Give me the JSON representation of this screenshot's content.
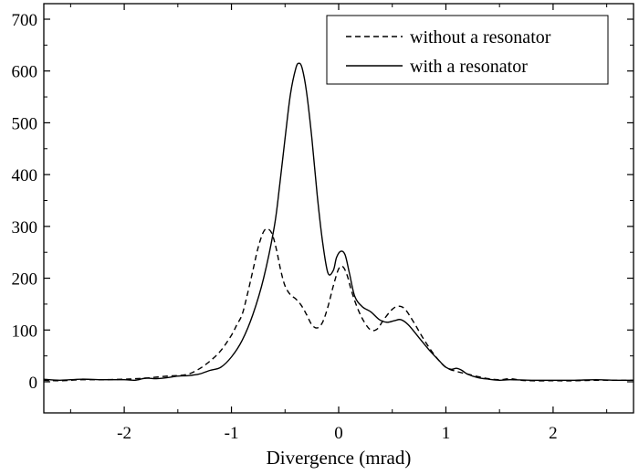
{
  "chart_data": {
    "type": "line",
    "title": "",
    "xlabel": "Divergence (mrad)",
    "ylabel": "",
    "xlim": [
      -2.75,
      2.75
    ],
    "ylim": [
      -60,
      730
    ],
    "x_ticks": [
      -2,
      -1,
      0,
      1,
      2
    ],
    "x_tick_labels": [
      "-2",
      "-1",
      "0",
      "1",
      "2"
    ],
    "y_ticks": [
      0,
      100,
      200,
      300,
      400,
      500,
      600,
      700
    ],
    "y_tick_labels": [
      "0",
      "100",
      "200",
      "300",
      "400",
      "500",
      "600",
      "700"
    ],
    "grid": false,
    "legend_position": "top-right",
    "series": [
      {
        "name": "without a resonator",
        "style": "dashed",
        "color": "#000000",
        "points": [
          [
            -2.75,
            3
          ],
          [
            -2.6,
            2
          ],
          [
            -2.4,
            4
          ],
          [
            -2.2,
            4
          ],
          [
            -2.0,
            5
          ],
          [
            -1.9,
            6
          ],
          [
            -1.8,
            7
          ],
          [
            -1.7,
            9
          ],
          [
            -1.6,
            11
          ],
          [
            -1.5,
            12
          ],
          [
            -1.4,
            15
          ],
          [
            -1.3,
            25
          ],
          [
            -1.2,
            40
          ],
          [
            -1.1,
            60
          ],
          [
            -1.0,
            90
          ],
          [
            -0.95,
            110
          ],
          [
            -0.9,
            130
          ],
          [
            -0.85,
            170
          ],
          [
            -0.8,
            215
          ],
          [
            -0.75,
            260
          ],
          [
            -0.7,
            290
          ],
          [
            -0.66,
            295
          ],
          [
            -0.62,
            285
          ],
          [
            -0.58,
            255
          ],
          [
            -0.54,
            215
          ],
          [
            -0.5,
            185
          ],
          [
            -0.45,
            168
          ],
          [
            -0.4,
            160
          ],
          [
            -0.35,
            148
          ],
          [
            -0.3,
            130
          ],
          [
            -0.25,
            110
          ],
          [
            -0.2,
            104
          ],
          [
            -0.15,
            115
          ],
          [
            -0.1,
            145
          ],
          [
            -0.05,
            185
          ],
          [
            0.0,
            218
          ],
          [
            0.04,
            222
          ],
          [
            0.08,
            205
          ],
          [
            0.12,
            175
          ],
          [
            0.18,
            140
          ],
          [
            0.24,
            115
          ],
          [
            0.3,
            100
          ],
          [
            0.36,
            102
          ],
          [
            0.42,
            120
          ],
          [
            0.5,
            140
          ],
          [
            0.56,
            146
          ],
          [
            0.62,
            140
          ],
          [
            0.7,
            115
          ],
          [
            0.8,
            80
          ],
          [
            0.9,
            50
          ],
          [
            1.0,
            28
          ],
          [
            1.1,
            20
          ],
          [
            1.2,
            15
          ],
          [
            1.3,
            10
          ],
          [
            1.4,
            6
          ],
          [
            1.5,
            4
          ],
          [
            1.6,
            6
          ],
          [
            1.7,
            3
          ],
          [
            1.8,
            2
          ],
          [
            2.0,
            2
          ],
          [
            2.2,
            2
          ],
          [
            2.4,
            3
          ],
          [
            2.6,
            3
          ],
          [
            2.75,
            3
          ]
        ]
      },
      {
        "name": "with a resonator",
        "style": "solid",
        "color": "#000000",
        "points": [
          [
            -2.75,
            5
          ],
          [
            -2.6,
            3
          ],
          [
            -2.4,
            5
          ],
          [
            -2.2,
            4
          ],
          [
            -2.0,
            4
          ],
          [
            -1.9,
            3
          ],
          [
            -1.8,
            7
          ],
          [
            -1.7,
            6
          ],
          [
            -1.6,
            8
          ],
          [
            -1.5,
            11
          ],
          [
            -1.4,
            12
          ],
          [
            -1.3,
            15
          ],
          [
            -1.2,
            22
          ],
          [
            -1.1,
            28
          ],
          [
            -1.0,
            48
          ],
          [
            -0.9,
            80
          ],
          [
            -0.8,
            130
          ],
          [
            -0.7,
            200
          ],
          [
            -0.6,
            300
          ],
          [
            -0.55,
            380
          ],
          [
            -0.5,
            470
          ],
          [
            -0.45,
            555
          ],
          [
            -0.4,
            605
          ],
          [
            -0.37,
            615
          ],
          [
            -0.34,
            605
          ],
          [
            -0.3,
            560
          ],
          [
            -0.25,
            470
          ],
          [
            -0.2,
            360
          ],
          [
            -0.15,
            270
          ],
          [
            -0.1,
            210
          ],
          [
            -0.05,
            215
          ],
          [
            -0.02,
            240
          ],
          [
            0.02,
            252
          ],
          [
            0.06,
            245
          ],
          [
            0.1,
            210
          ],
          [
            0.15,
            165
          ],
          [
            0.22,
            145
          ],
          [
            0.3,
            135
          ],
          [
            0.38,
            120
          ],
          [
            0.45,
            115
          ],
          [
            0.52,
            118
          ],
          [
            0.58,
            120
          ],
          [
            0.65,
            110
          ],
          [
            0.75,
            85
          ],
          [
            0.85,
            60
          ],
          [
            0.95,
            38
          ],
          [
            1.0,
            28
          ],
          [
            1.05,
            24
          ],
          [
            1.1,
            26
          ],
          [
            1.15,
            22
          ],
          [
            1.2,
            15
          ],
          [
            1.3,
            8
          ],
          [
            1.4,
            5
          ],
          [
            1.5,
            3
          ],
          [
            1.6,
            4
          ],
          [
            1.8,
            3
          ],
          [
            2.0,
            3
          ],
          [
            2.2,
            3
          ],
          [
            2.4,
            4
          ],
          [
            2.6,
            3
          ],
          [
            2.75,
            3
          ]
        ]
      }
    ]
  }
}
